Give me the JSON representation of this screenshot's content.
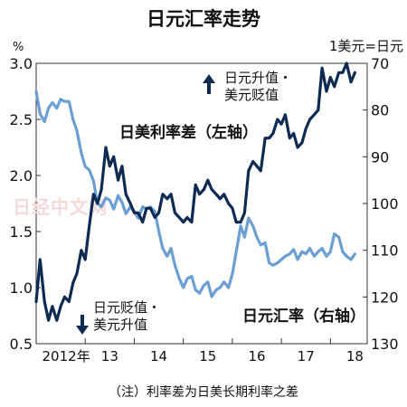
{
  "chart_data": {
    "type": "line",
    "title": "日元汇率走势",
    "left_axis": {
      "unit_label": "%",
      "ylim": [
        0.5,
        3.0
      ],
      "ticks": [
        "3.0",
        "2.5",
        "2.0",
        "1.5",
        "1.0",
        "0.5"
      ]
    },
    "right_axis": {
      "unit_label": "1美元=日元",
      "ylim": [
        130,
        70
      ],
      "inverted": true,
      "ticks": [
        "70",
        "80",
        "90",
        "100",
        "110",
        "120",
        "130"
      ]
    },
    "x_ticks": [
      "2012年",
      "13",
      "14",
      "15",
      "16",
      "17",
      "18"
    ],
    "watermark": "日经中文网",
    "footnote": "（注）利率差为日美长期利率之差",
    "annotations": {
      "yen_up": "日元升值・",
      "usd_down": "美元贬值",
      "yen_down": "日元贬值・",
      "usd_up": "美元升值"
    },
    "series": [
      {
        "name": "日美利率差（左轴）",
        "axis": "left",
        "color": "#6b9fd4",
        "x": [
          2012.0,
          2012.08,
          2012.17,
          2012.25,
          2012.33,
          2012.42,
          2012.5,
          2012.58,
          2012.67,
          2012.75,
          2012.83,
          2012.92,
          2013.0,
          2013.08,
          2013.17,
          2013.25,
          2013.33,
          2013.42,
          2013.5,
          2013.58,
          2013.67,
          2013.75,
          2013.83,
          2013.92,
          2014.0,
          2014.08,
          2014.17,
          2014.25,
          2014.33,
          2014.42,
          2014.5,
          2014.58,
          2014.67,
          2014.75,
          2014.83,
          2014.92,
          2015.0,
          2015.08,
          2015.17,
          2015.25,
          2015.33,
          2015.42,
          2015.5,
          2015.58,
          2015.67,
          2015.75,
          2015.83,
          2015.92,
          2016.0,
          2016.08,
          2016.17,
          2016.25,
          2016.33,
          2016.42,
          2016.5,
          2016.58,
          2016.67,
          2016.75,
          2016.83,
          2016.92,
          2017.0,
          2017.08,
          2017.17,
          2017.25,
          2017.33,
          2017.42,
          2017.5,
          2017.58,
          2017.67,
          2017.75,
          2017.83,
          2017.92,
          2018.0,
          2018.08,
          2018.17,
          2018.25,
          2018.33,
          2018.42,
          2018.5
        ],
        "values": [
          2.75,
          2.55,
          2.48,
          2.6,
          2.65,
          2.6,
          2.68,
          2.66,
          2.66,
          2.5,
          2.4,
          2.2,
          2.08,
          2.05,
          1.95,
          1.75,
          1.72,
          1.8,
          1.78,
          1.7,
          1.82,
          1.76,
          1.66,
          1.72,
          1.68,
          1.62,
          1.72,
          1.7,
          1.72,
          1.68,
          1.5,
          1.35,
          1.28,
          1.35,
          1.2,
          1.08,
          1.0,
          1.08,
          1.1,
          0.98,
          0.95,
          1.02,
          1.05,
          0.92,
          0.98,
          1.0,
          1.05,
          1.0,
          1.12,
          1.32,
          1.55,
          1.45,
          1.62,
          1.55,
          1.45,
          1.38,
          1.4,
          1.22,
          1.2,
          1.22,
          1.25,
          1.28,
          1.3,
          1.34,
          1.25,
          1.32,
          1.3,
          1.35,
          1.28,
          1.32,
          1.35,
          1.28,
          1.32,
          1.48,
          1.45,
          1.32,
          1.28,
          1.25,
          1.3
        ]
      },
      {
        "name": "日元汇率（右轴）",
        "axis": "right",
        "color": "#0d2a52",
        "x": [
          2012.0,
          2012.08,
          2012.17,
          2012.25,
          2012.33,
          2012.42,
          2012.5,
          2012.58,
          2012.67,
          2012.75,
          2012.83,
          2012.92,
          2013.0,
          2013.08,
          2013.17,
          2013.25,
          2013.33,
          2013.42,
          2013.5,
          2013.58,
          2013.67,
          2013.75,
          2013.83,
          2013.92,
          2014.0,
          2014.08,
          2014.17,
          2014.25,
          2014.33,
          2014.42,
          2014.5,
          2014.58,
          2014.67,
          2014.75,
          2014.83,
          2014.92,
          2015.0,
          2015.08,
          2015.17,
          2015.25,
          2015.33,
          2015.42,
          2015.5,
          2015.58,
          2015.67,
          2015.75,
          2015.83,
          2015.92,
          2016.0,
          2016.08,
          2016.17,
          2016.25,
          2016.33,
          2016.42,
          2016.5,
          2016.58,
          2016.67,
          2016.75,
          2016.83,
          2016.92,
          2017.0,
          2017.08,
          2017.17,
          2017.25,
          2017.33,
          2017.42,
          2017.5,
          2017.58,
          2017.67,
          2017.75,
          2017.83,
          2017.92,
          2018.0,
          2018.08,
          2018.17,
          2018.25,
          2018.33,
          2018.42,
          2018.5
        ],
        "values": [
          121,
          112,
          121,
          125,
          122,
          125,
          122,
          120,
          121,
          117,
          115,
          110,
          112,
          105,
          98,
          100,
          97,
          88,
          92,
          90,
          95,
          92,
          98,
          100,
          102,
          102,
          104,
          101,
          101,
          103,
          102,
          98,
          99,
          98,
          102,
          103,
          104,
          103,
          104,
          96,
          98,
          97,
          95,
          97,
          98,
          99,
          98,
          100,
          101,
          104,
          104,
          102,
          93,
          91,
          92,
          93,
          86,
          86,
          85,
          82,
          83,
          81,
          86,
          85,
          88,
          87,
          84,
          82,
          81,
          80,
          71,
          76,
          73,
          75,
          72,
          72,
          70,
          74,
          72
        ]
      }
    ]
  }
}
